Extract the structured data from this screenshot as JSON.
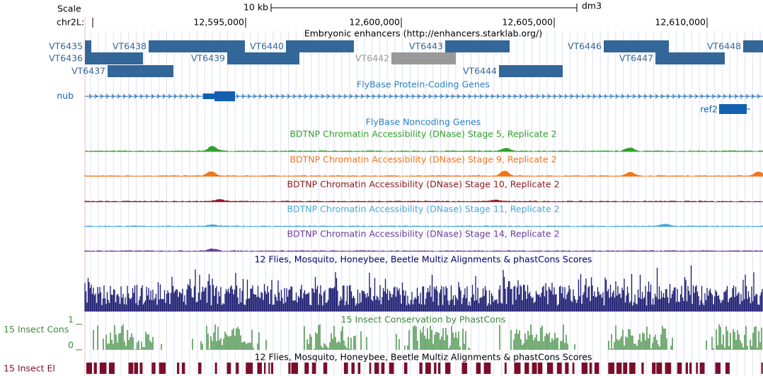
{
  "scale": {
    "label": "Scale",
    "span": "10 kb",
    "assembly": "dm3"
  },
  "ruler": {
    "chrom": "chr2L:",
    "positions": [
      "12,595,000",
      "12,600,000",
      "12,605,000",
      "12,610,000"
    ]
  },
  "enhancers": {
    "title": "Embryonic enhancers (http://enhancers.starklab.org/)",
    "items": [
      "VT6435",
      "VT6438",
      "VT6440",
      "VT6443",
      "VT6446",
      "VT6448",
      "VT6436",
      "VT6439",
      "VT6442",
      "VT6447",
      "VT6437",
      "VT6444"
    ]
  },
  "coding_genes": {
    "title": "FlyBase Protein-Coding Genes",
    "genes": [
      "nub",
      "ref2"
    ]
  },
  "noncoding_genes": {
    "title": "FlyBase Noncoding Genes"
  },
  "dnase": [
    "BDTNP Chromatin Accessibility (DNase) Stage 5, Replicate 2",
    "BDTNP Chromatin Accessibility (DNase) Stage 9, Replicate 2",
    "BDTNP Chromatin Accessibility (DNase) Stage 10, Replicate 2",
    "BDTNP Chromatin Accessibility (DNase) Stage 11, Replicate 2",
    "BDTNP Chromatin Accessibility (DNase) Stage 14, Replicate 2"
  ],
  "multiz": {
    "title": "12 Flies, Mosquito, Honeybee, Beetle Multiz Alignments & phastCons Scores"
  },
  "phastcons": {
    "title": "15 Insect Conservation by PhastCons",
    "label": "15 Insect Cons",
    "scale_max": "1",
    "scale_min": "0"
  },
  "elements": {
    "title": "12 Flies, Mosquito, Honeybee, Beetle Multiz Alignments & phastCons Scores",
    "label": "15 Insect El"
  }
}
